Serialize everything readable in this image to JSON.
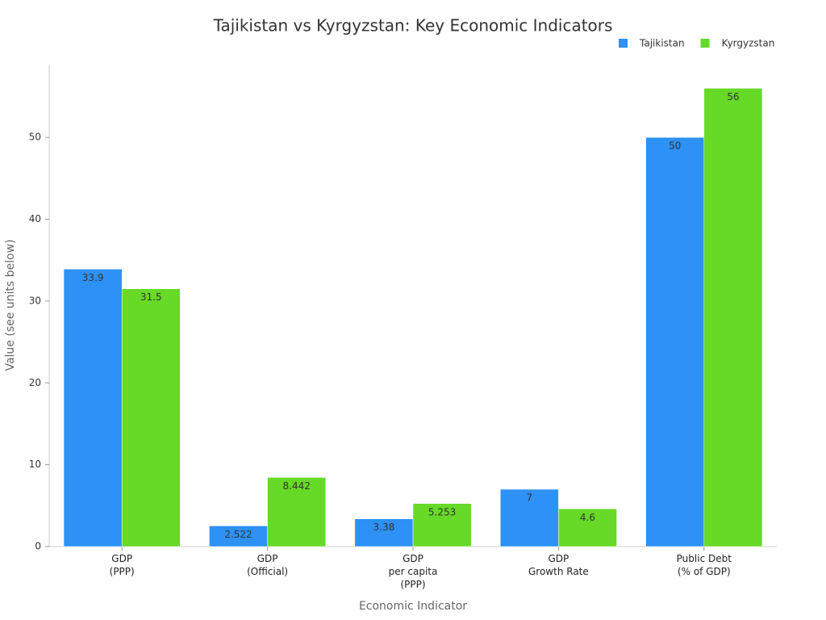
{
  "chart_data": {
    "type": "bar",
    "title": "Tajikistan vs Kyrgyzstan: Key Economic Indicators",
    "x_label": "Economic Indicator",
    "y_label": "Value (see units below)",
    "categories": [
      "GDP\n(PPP)",
      "GDP\n(Official)",
      "GDP\nper capita\n(PPP)",
      "GDP\nGrowth Rate",
      "Public Debt\n(% of GDP)"
    ],
    "series": [
      {
        "name": "Tajikistan",
        "color": "#2d91f5",
        "values": [
          33.9,
          2.522,
          3.38,
          7,
          50
        ]
      },
      {
        "name": "Kyrgyzstan",
        "color": "#66da26",
        "values": [
          31.5,
          8.442,
          5.253,
          4.6,
          56
        ]
      }
    ],
    "ylim": [
      0,
      58.9
    ],
    "yticks": [
      0,
      10,
      20,
      30,
      40,
      50
    ],
    "grid": false,
    "legend": "top-right"
  }
}
